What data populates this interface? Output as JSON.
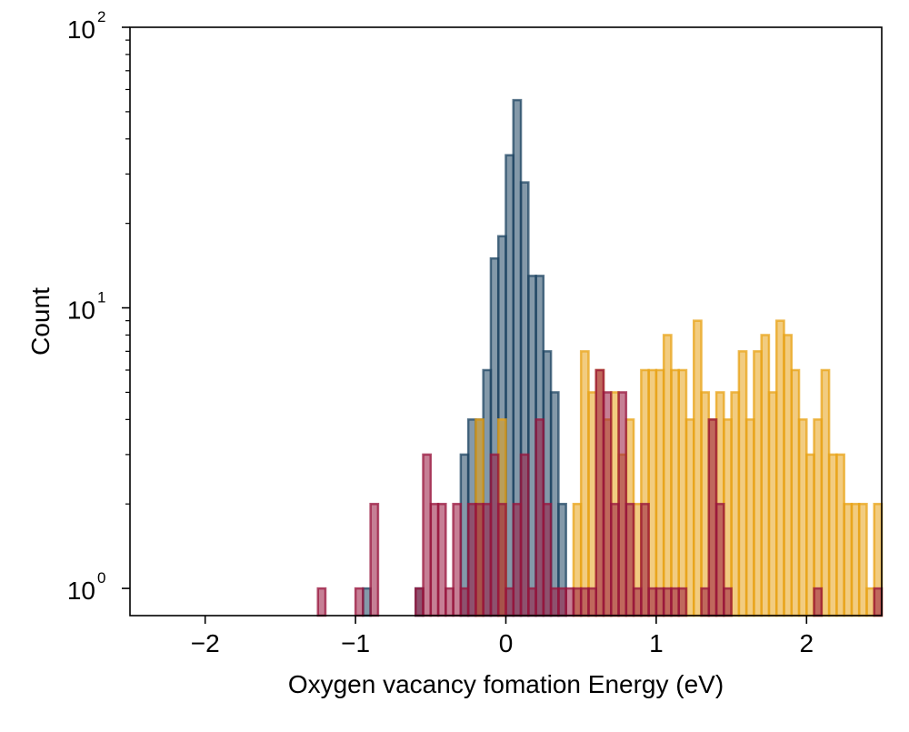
{
  "chart_data": {
    "type": "histogram",
    "xlabel": "Oxygen vacancy fomation Energy (eV)",
    "ylabel": "Count",
    "xlim": [
      -2.5,
      2.5
    ],
    "ylim": [
      0.8,
      100
    ],
    "yscale": "log",
    "bin_width": 0.05,
    "grid": false,
    "x_ticks": [
      {
        "value": -2,
        "label": "−2"
      },
      {
        "value": -1,
        "label": "−1"
      },
      {
        "value": 0,
        "label": "0"
      },
      {
        "value": 1,
        "label": "1"
      },
      {
        "value": 2,
        "label": "2"
      }
    ],
    "y_ticks": [
      {
        "value": 1,
        "base": "10",
        "exp": "0"
      },
      {
        "value": 10,
        "base": "10",
        "exp": "1"
      },
      {
        "value": 100,
        "base": "10",
        "exp": "2"
      }
    ],
    "series": [
      {
        "color": "#1f4563",
        "bins": [
          {
            "x": -0.95,
            "count": 1
          },
          {
            "x": -0.6,
            "count": 1
          },
          {
            "x": -0.3,
            "count": 3
          },
          {
            "x": -0.25,
            "count": 4
          },
          {
            "x": -0.2,
            "count": 4
          },
          {
            "x": -0.15,
            "count": 6
          },
          {
            "x": -0.1,
            "count": 15
          },
          {
            "x": -0.05,
            "count": 18
          },
          {
            "x": 0.0,
            "count": 35
          },
          {
            "x": 0.05,
            "count": 55
          },
          {
            "x": 0.1,
            "count": 28
          },
          {
            "x": 0.15,
            "count": 13
          },
          {
            "x": 0.2,
            "count": 13
          },
          {
            "x": 0.25,
            "count": 7
          },
          {
            "x": 0.3,
            "count": 5
          },
          {
            "x": 0.35,
            "count": 2
          }
        ]
      },
      {
        "color": "#e8a317",
        "bins": [
          {
            "x": -0.2,
            "count": 4
          },
          {
            "x": -0.05,
            "count": 4
          },
          {
            "x": 0.45,
            "count": 2
          },
          {
            "x": 0.5,
            "count": 7
          },
          {
            "x": 0.55,
            "count": 5
          },
          {
            "x": 0.6,
            "count": 6
          },
          {
            "x": 0.65,
            "count": 4
          },
          {
            "x": 0.7,
            "count": 5
          },
          {
            "x": 0.75,
            "count": 3
          },
          {
            "x": 0.8,
            "count": 4
          },
          {
            "x": 0.85,
            "count": 2
          },
          {
            "x": 0.9,
            "count": 6
          },
          {
            "x": 0.95,
            "count": 6
          },
          {
            "x": 1.0,
            "count": 6
          },
          {
            "x": 1.05,
            "count": 8
          },
          {
            "x": 1.1,
            "count": 6
          },
          {
            "x": 1.15,
            "count": 6
          },
          {
            "x": 1.2,
            "count": 4
          },
          {
            "x": 1.25,
            "count": 9
          },
          {
            "x": 1.3,
            "count": 5
          },
          {
            "x": 1.35,
            "count": 4
          },
          {
            "x": 1.4,
            "count": 5
          },
          {
            "x": 1.45,
            "count": 4
          },
          {
            "x": 1.5,
            "count": 5
          },
          {
            "x": 1.55,
            "count": 7
          },
          {
            "x": 1.6,
            "count": 4
          },
          {
            "x": 1.65,
            "count": 7
          },
          {
            "x": 1.7,
            "count": 8
          },
          {
            "x": 1.75,
            "count": 5
          },
          {
            "x": 1.8,
            "count": 9
          },
          {
            "x": 1.85,
            "count": 8
          },
          {
            "x": 1.9,
            "count": 6
          },
          {
            "x": 1.95,
            "count": 4
          },
          {
            "x": 2.0,
            "count": 3
          },
          {
            "x": 2.05,
            "count": 4
          },
          {
            "x": 2.1,
            "count": 6
          },
          {
            "x": 2.15,
            "count": 3
          },
          {
            "x": 2.2,
            "count": 3
          },
          {
            "x": 2.25,
            "count": 2
          },
          {
            "x": 2.3,
            "count": 2
          },
          {
            "x": 2.35,
            "count": 2
          },
          {
            "x": 2.4,
            "count": 1
          },
          {
            "x": 2.45,
            "count": 2
          }
        ]
      },
      {
        "color": "#98153e",
        "bins": [
          {
            "x": -1.25,
            "count": 1
          },
          {
            "x": -1.0,
            "count": 1
          },
          {
            "x": -0.9,
            "count": 2
          },
          {
            "x": -0.6,
            "count": 1
          },
          {
            "x": -0.55,
            "count": 3
          },
          {
            "x": -0.5,
            "count": 2
          },
          {
            "x": -0.45,
            "count": 2
          },
          {
            "x": -0.4,
            "count": 1
          },
          {
            "x": -0.35,
            "count": 2
          },
          {
            "x": -0.3,
            "count": 1
          },
          {
            "x": -0.25,
            "count": 2
          },
          {
            "x": -0.2,
            "count": 2
          },
          {
            "x": -0.15,
            "count": 2
          },
          {
            "x": -0.1,
            "count": 3
          },
          {
            "x": -0.05,
            "count": 2
          },
          {
            "x": 0.0,
            "count": 1
          },
          {
            "x": 0.05,
            "count": 2
          },
          {
            "x": 0.1,
            "count": 3
          },
          {
            "x": 0.15,
            "count": 1
          },
          {
            "x": 0.2,
            "count": 4
          },
          {
            "x": 0.25,
            "count": 2
          },
          {
            "x": 0.3,
            "count": 1
          },
          {
            "x": 0.35,
            "count": 1
          },
          {
            "x": 0.4,
            "count": 1
          },
          {
            "x": 0.45,
            "count": 1
          },
          {
            "x": 0.5,
            "count": 1
          },
          {
            "x": 0.55,
            "count": 1
          },
          {
            "x": 0.6,
            "count": 6
          },
          {
            "x": 0.65,
            "count": 5
          },
          {
            "x": 0.7,
            "count": 2
          },
          {
            "x": 0.75,
            "count": 5
          },
          {
            "x": 0.8,
            "count": 2
          },
          {
            "x": 0.85,
            "count": 1
          },
          {
            "x": 0.9,
            "count": 2
          },
          {
            "x": 0.95,
            "count": 1
          },
          {
            "x": 1.0,
            "count": 1
          },
          {
            "x": 1.05,
            "count": 1
          },
          {
            "x": 1.1,
            "count": 1
          },
          {
            "x": 1.15,
            "count": 1
          },
          {
            "x": 1.3,
            "count": 1
          },
          {
            "x": 1.35,
            "count": 4
          },
          {
            "x": 1.4,
            "count": 2
          },
          {
            "x": 1.45,
            "count": 1
          },
          {
            "x": 2.05,
            "count": 1
          },
          {
            "x": 2.45,
            "count": 1
          }
        ]
      }
    ]
  }
}
